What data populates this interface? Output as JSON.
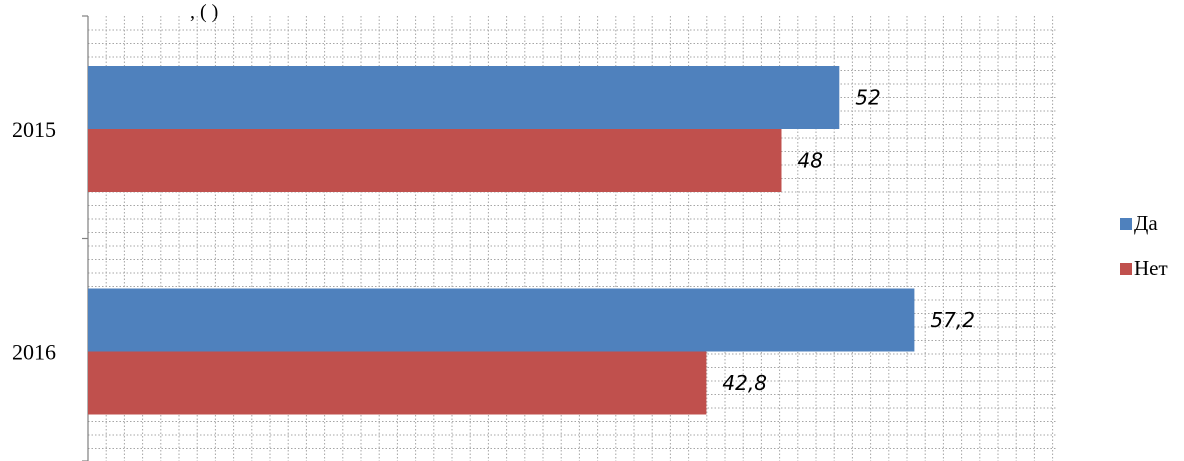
{
  "chart_data": {
    "type": "bar",
    "orientation": "horizontal",
    "title": "",
    "partial_title_text": ", (       )",
    "categories": [
      "2015",
      "2016"
    ],
    "series": [
      {
        "name": "Да",
        "values": [
          52,
          57.2
        ],
        "labels": [
          "52",
          "57,2"
        ],
        "color": "#4F81BD"
      },
      {
        "name": "Нет",
        "values": [
          48,
          42.8
        ],
        "labels": [
          "48",
          "42,8"
        ],
        "color": "#C0504D"
      }
    ],
    "xlim": [
      0,
      67
    ],
    "grid": true,
    "legend_position": "right"
  }
}
